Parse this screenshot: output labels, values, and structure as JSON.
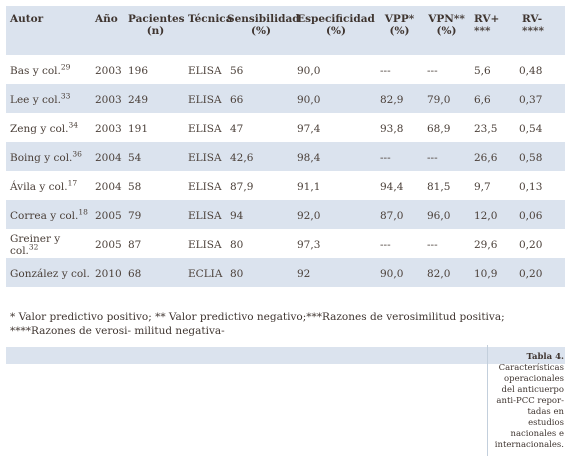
{
  "headers": [
    {
      "line1": "Autor",
      "line2": ""
    },
    {
      "line1": "Año",
      "line2": ""
    },
    {
      "line1": "Pacientes",
      "line2": "(n)"
    },
    {
      "line1": "Técnica",
      "line2": ""
    },
    {
      "line1": "Sensibilidad",
      "line2": "(%)"
    },
    {
      "line1": "Especificidad",
      "line2": "(%)"
    },
    {
      "line1": "VPP*",
      "line2": "(%)"
    },
    {
      "line1": "VPN**",
      "line2": "(%)"
    },
    {
      "line1": "RV+",
      "line2": "***"
    },
    {
      "line1": "RV-",
      "line2": "****"
    }
  ],
  "rows": [
    {
      "autor": "Bas y col.",
      "ref": "29",
      "anio": "2003",
      "n": "196",
      "tec": "ELISA",
      "sens": "56",
      "esp": "90,0",
      "vpp": "---",
      "vpn": "---",
      "rvp": "5,6",
      "rvn": "0,48"
    },
    {
      "autor": "Lee y col.",
      "ref": "33",
      "anio": "2003",
      "n": "249",
      "tec": "ELISA",
      "sens": "66",
      "esp": "90,0",
      "vpp": "82,9",
      "vpn": "79,0",
      "rvp": "6,6",
      "rvn": "0,37"
    },
    {
      "autor": "Zeng y col.",
      "ref": "34",
      "anio": "2003",
      "n": "191",
      "tec": "ELISA",
      "sens": "47",
      "esp": "97,4",
      "vpp": "93,8",
      "vpn": "68,9",
      "rvp": "23,5",
      "rvn": "0,54"
    },
    {
      "autor": "Boing y col.",
      "ref": "36",
      "anio": "2004",
      "n": "54",
      "tec": "ELISA",
      "sens": "42,6",
      "esp": "98,4",
      "vpp": "---",
      "vpn": "---",
      "rvp": "26,6",
      "rvn": "0,58"
    },
    {
      "autor": "Ávila y col.",
      "ref": "17",
      "anio": "2004",
      "n": "58",
      "tec": "ELISA",
      "sens": "87,9",
      "esp": "91,1",
      "vpp": "94,4",
      "vpn": "81,5",
      "rvp": "9,7",
      "rvn": "0,13"
    },
    {
      "autor": "Correa y col.",
      "ref": "18",
      "anio": "2005",
      "n": "79",
      "tec": "ELISA",
      "sens": "94",
      "esp": "92,0",
      "vpp": "87,0",
      "vpn": "96,0",
      "rvp": "12,0",
      "rvn": "0,06"
    },
    {
      "autor": "Greiner y col.",
      "ref": "32",
      "anio": "2005",
      "n": "87",
      "tec": "ELISA",
      "sens": "80",
      "esp": "97,3",
      "vpp": "---",
      "vpn": "---",
      "rvp": "29,6",
      "rvn": "0,20"
    },
    {
      "autor": "González  y col.",
      "ref": "",
      "anio": "2010",
      "n": "68",
      "tec": "ECLIA",
      "sens": "80",
      "esp": "92",
      "vpp": "90,0",
      "vpn": "82,0",
      "rvp": "10,9",
      "rvn": "0,20"
    }
  ],
  "footnote": "* Valor predictivo positivo; ** Valor predictivo negativo;***Razones de verosimilitud positiva; ****Razones de verosi- militud negativa-",
  "caption": {
    "title": "Tabla 4.",
    "lines": [
      "Características",
      "operacionales",
      "del anticuerpo",
      "anti-PCC repor-",
      "tadas en estudios",
      "nacionales e",
      "internacionales."
    ]
  }
}
